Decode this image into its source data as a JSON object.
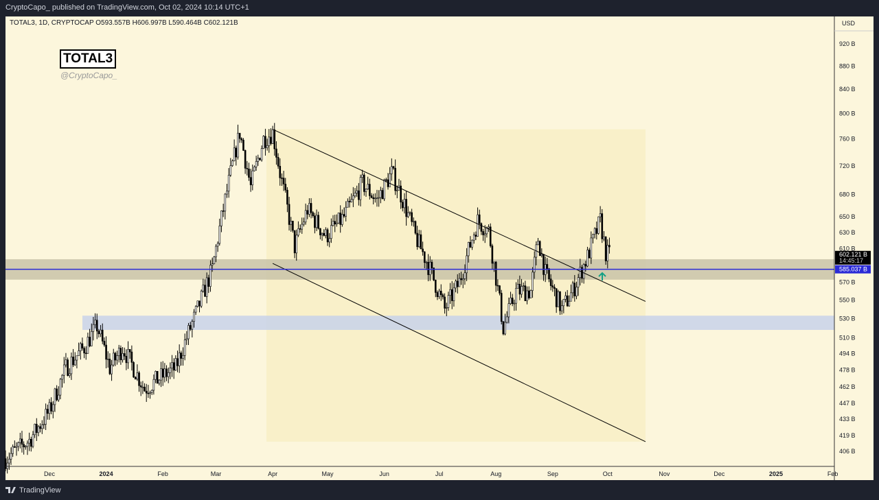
{
  "header": {
    "published": "CryptoCapo_ published on TradingView.com, Oct 02, 2024 10:14 UTC+1",
    "ohlc": "TOTAL3, 1D, CRYPTOCAP  O593.557B  H606.997B  L590.464B  C602.121B"
  },
  "logo": {
    "title": "TOTAL3",
    "handle": "@CryptoCapo_"
  },
  "footer": {
    "brand": "TradingView"
  },
  "chart_data": {
    "type": "candlestick",
    "symbol": "TOTAL3",
    "interval": "1D",
    "currency": "USD",
    "scale": "log",
    "y_ticks": [
      "920 B",
      "880 B",
      "840 B",
      "800 B",
      "760 B",
      "720 B",
      "680 B",
      "650 B",
      "630 B",
      "610 B",
      "570 B",
      "550 B",
      "530 B",
      "510 B",
      "494 B",
      "478 B",
      "462 B",
      "447 B",
      "433 B",
      "419 B",
      "406 B"
    ],
    "y_tick_values": [
      920,
      880,
      840,
      800,
      760,
      720,
      680,
      650,
      630,
      610,
      570,
      550,
      530,
      510,
      494,
      478,
      462,
      447,
      433,
      419,
      406
    ],
    "x_ticks": [
      "Dec",
      "2024",
      "Feb",
      "Mar",
      "Apr",
      "May",
      "Jun",
      "Jul",
      "Aug",
      "Sep",
      "Oct",
      "Nov",
      "Dec",
      "2025",
      "Feb"
    ],
    "x_tick_dates": [
      "2023-12-01",
      "2024-01-01",
      "2024-02-01",
      "2024-03-01",
      "2024-04-01",
      "2024-05-01",
      "2024-06-01",
      "2024-07-01",
      "2024-08-01",
      "2024-09-01",
      "2024-10-01",
      "2024-11-01",
      "2024-12-01",
      "2025-01-01",
      "2025-02-01"
    ],
    "last_price": {
      "label": "602.121 B",
      "countdown": "14:45:17",
      "value": 602.121
    },
    "hline": {
      "label": "585.037 B",
      "value": 585.037,
      "color": "#2b2bd6"
    },
    "close_path": [
      [
        "2023-11-07",
        400
      ],
      [
        "2023-11-20",
        415
      ],
      [
        "2023-12-01",
        440
      ],
      [
        "2023-12-10",
        480
      ],
      [
        "2023-12-20",
        500
      ],
      [
        "2023-12-27",
        522
      ],
      [
        "2024-01-03",
        480
      ],
      [
        "2024-01-10",
        500
      ],
      [
        "2024-01-22",
        460
      ],
      [
        "2024-01-30",
        470
      ],
      [
        "2024-02-08",
        480
      ],
      [
        "2024-02-20",
        540
      ],
      [
        "2024-02-28",
        585
      ],
      [
        "2024-03-05",
        660
      ],
      [
        "2024-03-14",
        770
      ],
      [
        "2024-03-20",
        690
      ],
      [
        "2024-03-27",
        760
      ],
      [
        "2024-04-01",
        770
      ],
      [
        "2024-04-05",
        710
      ],
      [
        "2024-04-13",
        612
      ],
      [
        "2024-04-20",
        660
      ],
      [
        "2024-04-30",
        625
      ],
      [
        "2024-05-10",
        650
      ],
      [
        "2024-05-20",
        695
      ],
      [
        "2024-05-28",
        672
      ],
      [
        "2024-06-05",
        710
      ],
      [
        "2024-06-10",
        680
      ],
      [
        "2024-06-18",
        625
      ],
      [
        "2024-06-25",
        590
      ],
      [
        "2024-07-04",
        540
      ],
      [
        "2024-07-12",
        570
      ],
      [
        "2024-07-22",
        645
      ],
      [
        "2024-07-28",
        632
      ],
      [
        "2024-08-05",
        520
      ],
      [
        "2024-08-12",
        560
      ],
      [
        "2024-08-20",
        560
      ],
      [
        "2024-08-24",
        622
      ],
      [
        "2024-08-28",
        580
      ],
      [
        "2024-09-06",
        540
      ],
      [
        "2024-09-12",
        560
      ],
      [
        "2024-09-20",
        600
      ],
      [
        "2024-09-27",
        645
      ],
      [
        "2024-09-30",
        605
      ],
      [
        "2024-10-02",
        602
      ]
    ],
    "channel": {
      "upper": [
        [
          "2024-04-01",
          775
        ],
        [
          "2024-09-26",
          573
        ]
      ],
      "lower": [
        [
          "2024-04-01",
          592
        ],
        [
          "2024-09-26",
          433
        ]
      ]
    },
    "zones": [
      {
        "from": 573,
        "to": 597,
        "color": "#c9c3a8"
      },
      {
        "from": 518,
        "to": 533,
        "color": "#c8d2ea"
      }
    ]
  }
}
